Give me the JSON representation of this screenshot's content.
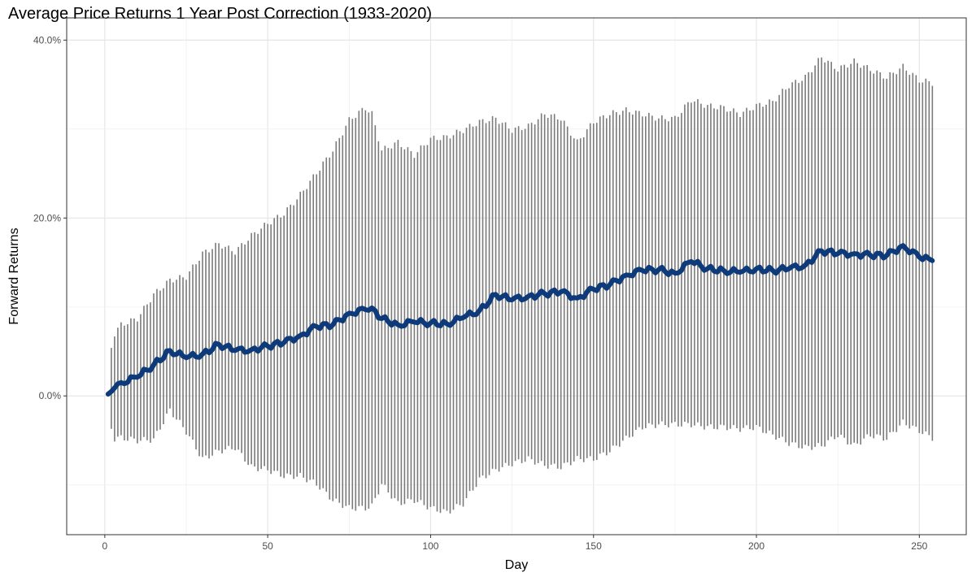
{
  "chart_data": {
    "type": "errorbar-line",
    "title": "Average Price Returns 1 Year Post Correction (1933-2020)",
    "xlabel": "Day",
    "ylabel": "Forward Returns",
    "xlim": [
      -11.7,
      264.4
    ],
    "ylim": [
      -15.6,
      42.5
    ],
    "xticks": [
      0,
      50,
      100,
      150,
      200,
      250
    ],
    "xtick_labels": [
      "0",
      "50",
      "100",
      "150",
      "200",
      "250"
    ],
    "yticks": [
      0,
      20,
      40
    ],
    "ytick_labels": [
      "0.0%",
      "20.0%",
      "40.0%"
    ],
    "grid": true,
    "colors": {
      "mean": "#0d3a7a",
      "bars": "#7a7a7a"
    },
    "series": {
      "day": [
        1,
        2,
        3,
        5,
        10,
        15,
        20,
        25,
        30,
        35,
        40,
        45,
        50,
        55,
        60,
        65,
        70,
        75,
        80,
        82,
        85,
        90,
        95,
        100,
        105,
        110,
        115,
        120,
        125,
        130,
        135,
        140,
        145,
        150,
        155,
        160,
        165,
        170,
        175,
        180,
        185,
        190,
        195,
        200,
        205,
        210,
        215,
        220,
        225,
        230,
        235,
        240,
        245,
        250,
        254
      ],
      "mean": [
        0.2,
        0.5,
        0.9,
        1.5,
        2.1,
        3.5,
        5.1,
        4.3,
        4.7,
        5.8,
        5.1,
        5.2,
        5.6,
        6.0,
        6.8,
        7.8,
        8.0,
        9.3,
        9.7,
        9.9,
        8.7,
        8.0,
        8.3,
        8.2,
        8.1,
        8.8,
        9.6,
        11.4,
        10.8,
        11.2,
        11.5,
        11.7,
        11.0,
        12.0,
        12.5,
        13.6,
        14.1,
        14.2,
        13.8,
        15.1,
        14.3,
        14.1,
        13.9,
        14.3,
        14.1,
        14.3,
        14.7,
        16.3,
        16.0,
        16.0,
        15.8,
        15.8,
        16.9,
        15.6,
        15.2
      ],
      "upper": [
        null,
        5.4,
        7.0,
        8.0,
        8.7,
        11.4,
        13.0,
        13.4,
        16.0,
        17.1,
        16.2,
        18.0,
        19.4,
        20.5,
        22.6,
        25.1,
        27.6,
        31.0,
        32.4,
        31.7,
        27.6,
        28.5,
        27.1,
        28.9,
        29.1,
        29.9,
        30.8,
        31.2,
        29.9,
        30.3,
        31.7,
        31.2,
        28.5,
        30.8,
        31.7,
        32.1,
        31.7,
        31.2,
        31.2,
        33.3,
        32.6,
        32.4,
        31.7,
        32.6,
        33.1,
        34.9,
        35.8,
        38.1,
        36.7,
        37.6,
        36.7,
        35.8,
        37.0,
        35.5,
        35.2
      ],
      "lower": [
        null,
        -3.7,
        -4.8,
        -4.7,
        -5.0,
        -4.9,
        -1.6,
        -4.0,
        -7.1,
        -6.2,
        -5.8,
        -8.0,
        -8.3,
        -9.0,
        -9.0,
        -9.9,
        -11.7,
        -12.6,
        -12.6,
        -12.4,
        -9.9,
        -12.1,
        -11.7,
        -12.6,
        -13.1,
        -12.1,
        -9.4,
        -8.3,
        -7.6,
        -7.1,
        -7.8,
        -8.0,
        -7.1,
        -7.1,
        -6.2,
        -4.8,
        -3.5,
        -3.2,
        -3.2,
        -3.2,
        -3.5,
        -3.5,
        -3.7,
        -3.5,
        -4.4,
        -5.3,
        -5.8,
        -5.6,
        -4.4,
        -5.6,
        -4.4,
        -4.8,
        -3.0,
        -3.9,
        -4.7
      ]
    }
  }
}
